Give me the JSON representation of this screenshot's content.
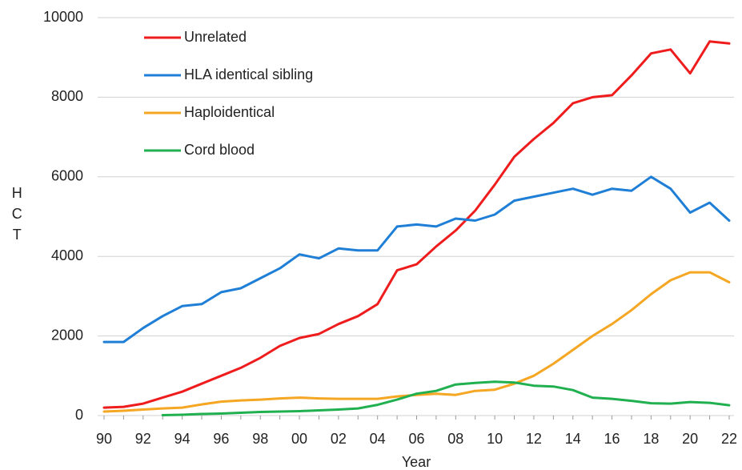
{
  "chart_data": {
    "type": "line",
    "y_label": "HCT",
    "x_label": "Year",
    "categories": [
      "90",
      null,
      "92",
      null,
      "94",
      null,
      "96",
      null,
      "98",
      null,
      "00",
      null,
      "02",
      null,
      "04",
      null,
      "06",
      null,
      "08",
      null,
      "10",
      null,
      "12",
      null,
      "14",
      null,
      "16",
      null,
      "18",
      null,
      "20",
      null,
      "22"
    ],
    "series": [
      {
        "name": "Unrelated",
        "color": "#ee1c1c",
        "values": [
          200,
          220,
          300,
          450,
          600,
          800,
          1000,
          1200,
          1450,
          1750,
          1950,
          2050,
          2300,
          2500,
          2800,
          3650,
          3800,
          4250,
          4650,
          5150,
          5800,
          6500,
          6950,
          7350,
          7850,
          8000,
          8050,
          8550,
          9100,
          9200,
          8600,
          9400,
          9350
        ]
      },
      {
        "name": "HLA identical sibling",
        "color": "#1f7fd6",
        "values": [
          1850,
          1850,
          2200,
          2500,
          2750,
          2800,
          3100,
          3200,
          3450,
          3700,
          4050,
          3950,
          4200,
          4150,
          4150,
          4750,
          4800,
          4750,
          4950,
          4900,
          5050,
          5400,
          5500,
          5600,
          5700,
          5550,
          5700,
          5650,
          6000,
          5700,
          5100,
          5350,
          4900
        ]
      },
      {
        "name": "Haploidentical",
        "color": "#f5a623",
        "values": [
          100,
          120,
          150,
          180,
          200,
          280,
          350,
          380,
          400,
          430,
          450,
          430,
          420,
          420,
          420,
          480,
          520,
          550,
          520,
          620,
          650,
          800,
          1000,
          1300,
          1650,
          2000,
          2300,
          2650,
          3050,
          3400,
          3600,
          3600,
          3350
        ]
      },
      {
        "name": "Cord blood",
        "color": "#20b050",
        "values": [
          null,
          null,
          null,
          10,
          20,
          40,
          50,
          70,
          90,
          100,
          110,
          130,
          150,
          180,
          270,
          400,
          550,
          620,
          780,
          820,
          850,
          830,
          750,
          730,
          640,
          450,
          420,
          370,
          310,
          300,
          340,
          320,
          260
        ]
      }
    ],
    "ylim": [
      0,
      10000
    ],
    "yticks": [
      0,
      2000,
      4000,
      6000,
      8000,
      10000
    ],
    "grid": true
  }
}
